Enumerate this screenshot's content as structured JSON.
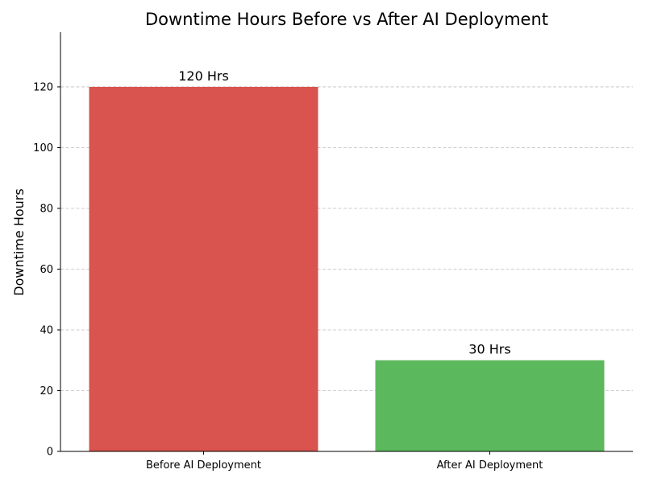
{
  "chart_data": {
    "type": "bar",
    "title": "Downtime Hours Before vs After AI Deployment",
    "xlabel": "",
    "ylabel": "Downtime Hours",
    "categories": [
      "Before AI Deployment",
      "After AI Deployment"
    ],
    "values": [
      120,
      30
    ],
    "data_labels": [
      "120 Hrs",
      "30 Hrs"
    ],
    "colors": [
      "#d9534f",
      "#5cb85c"
    ],
    "ylim": [
      0,
      138
    ],
    "yticks": [
      0,
      20,
      40,
      60,
      80,
      100,
      120
    ],
    "ytick_labels": [
      "0",
      "20",
      "40",
      "60",
      "80",
      "100",
      "120"
    ],
    "grid": "y-dashed",
    "spines": "left-bottom"
  }
}
